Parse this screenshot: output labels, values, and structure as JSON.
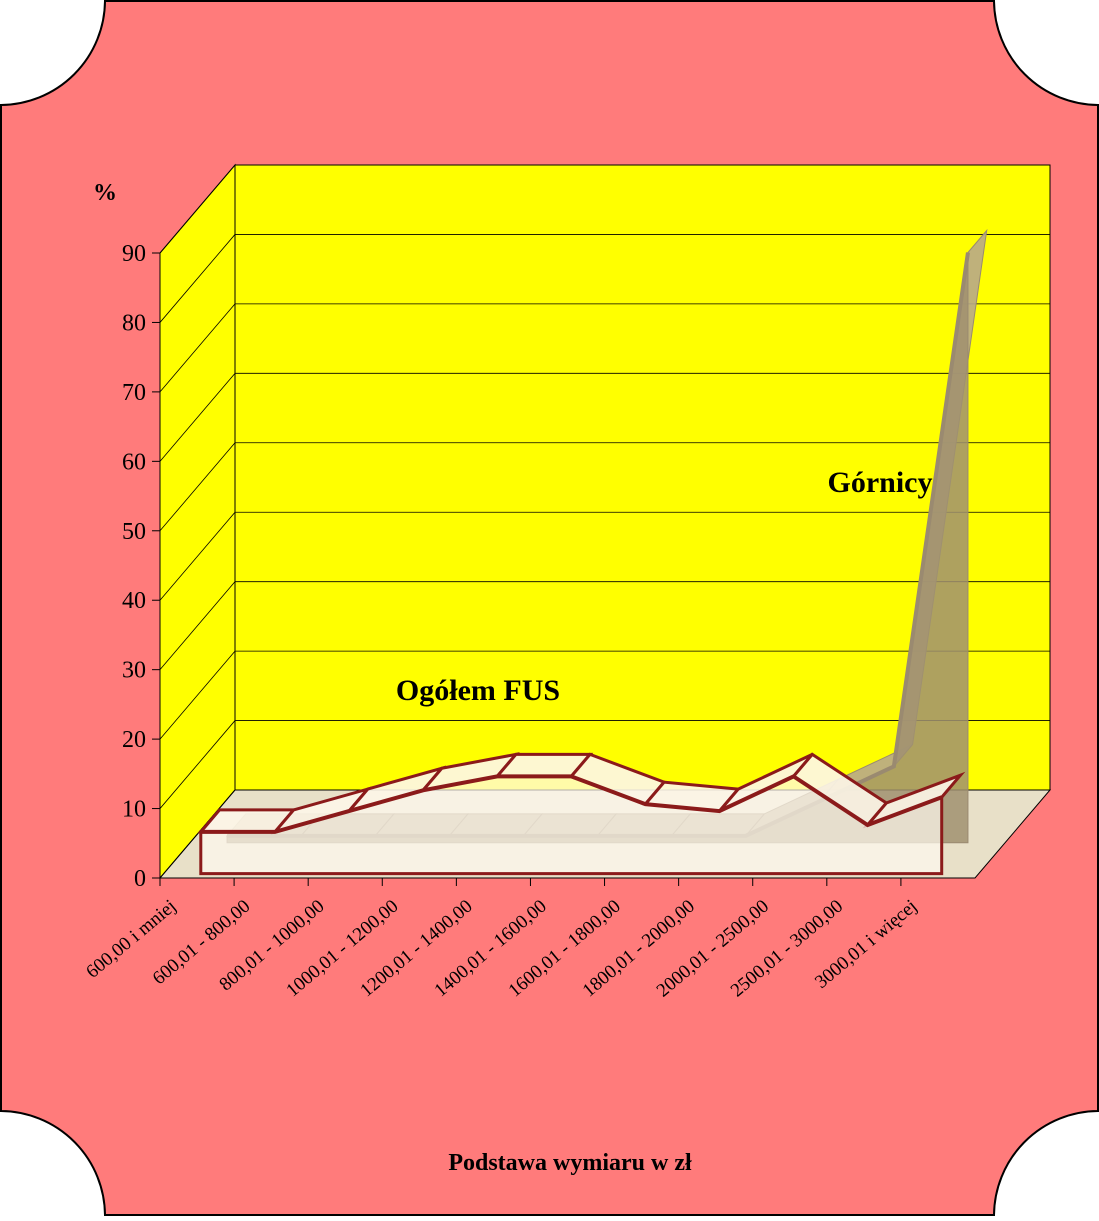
{
  "chart_data": {
    "type": "line3d",
    "y_label": "%",
    "x_label": "Podstawa wymiaru w zł",
    "categories": [
      "600,00 i mniej",
      "600,01 - 800,00",
      "800,01 - 1000,00",
      "1000,01 - 1200,00",
      "1200,01 - 1400,00",
      "1400,01 - 1600,00",
      "1600,01 - 1800,00",
      "1800,01 - 2000,00",
      "2000,01 - 2500,00",
      "2500,01 - 3000,00",
      "3000,01 i więcej"
    ],
    "series": [
      {
        "name": "Ogółem FUS",
        "color": "#8b1a1a",
        "values": [
          6,
          6,
          9,
          12,
          14,
          14,
          10,
          9,
          14,
          7,
          11
        ]
      },
      {
        "name": "Górnicy",
        "color": "#9a8a70",
        "values": [
          1,
          1,
          1,
          1,
          1,
          1,
          1,
          1,
          6,
          11,
          85
        ]
      }
    ],
    "ylim": [
      0,
      90
    ],
    "yticks": [
      0,
      10,
      20,
      30,
      40,
      50,
      60,
      70,
      80,
      90
    ],
    "grid": true
  }
}
